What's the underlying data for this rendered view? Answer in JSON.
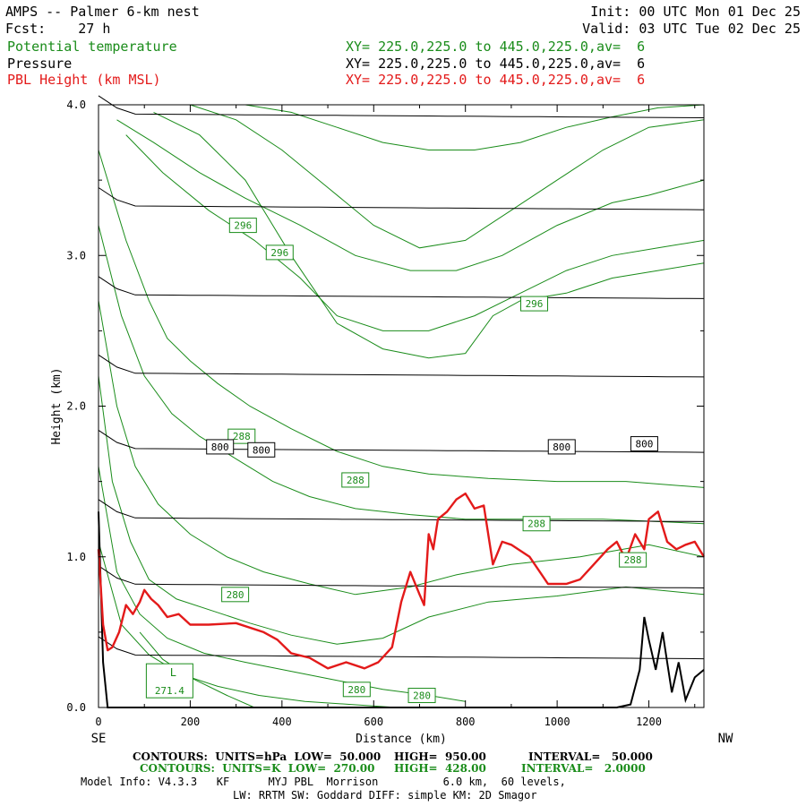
{
  "header": {
    "left_line1": "AMPS -- Palmer 6-km nest",
    "left_line2": "Fcst:    27 h",
    "right_line1": "Init: 00 UTC Mon 01 Dec 25",
    "right_line2": "Valid: 03 UTC Tue 02 Dec 25",
    "field1": "Potential temperature",
    "field2": "Pressure",
    "field3": "PBL Height (km MSL)",
    "xy1": "XY= 225.0,225.0 to 445.0,225.0,av=  6",
    "xy2": "XY= 225.0,225.0 to 445.0,225.0,av=  6",
    "xy3": "XY= 225.0,225.0 to 445.0,225.0,av=  6"
  },
  "colors": {
    "theta": "#1a8c1a",
    "pressure": "#000000",
    "pbl": "#e31a1a"
  },
  "chart_data": {
    "type": "line",
    "title": "AMPS -- Palmer 6-km nest",
    "xlabel": "Distance (km)",
    "ylabel": "Height (km)",
    "xlim": [
      0,
      1320
    ],
    "ylim": [
      0,
      4.0
    ],
    "x_ticks": [
      0,
      200,
      400,
      600,
      800,
      1000,
      1200
    ],
    "x_tick_labels": [
      "0",
      "200",
      "400",
      "600",
      "800",
      "1000",
      "1200"
    ],
    "y_ticks": [
      0,
      1,
      2,
      3,
      4
    ],
    "y_tick_labels": [
      "0.0",
      "1.0",
      "2.0",
      "3.0",
      "4.0"
    ],
    "endpoint_left": "SE",
    "endpoint_right": "NW",
    "pressure_levels_km": [
      0.35,
      0.82,
      1.26,
      1.72,
      2.22,
      2.74,
      3.33,
      3.94
    ],
    "pressure_labels": [
      {
        "text": "800",
        "x": 265,
        "y": 1.73
      },
      {
        "text": "800",
        "x": 355,
        "y": 1.71
      },
      {
        "text": "800",
        "x": 1010,
        "y": 1.73
      },
      {
        "text": "800",
        "x": 1190,
        "y": 1.75
      }
    ],
    "theta_lines": [
      {
        "x": [
          0,
          60,
          110,
          150,
          200,
          260,
          330,
          420,
          520,
          620,
          720,
          850,
          1000,
          1150,
          1320
        ],
        "y": [
          3.7,
          3.1,
          2.7,
          2.45,
          2.3,
          2.15,
          2.0,
          1.85,
          1.7,
          1.6,
          1.55,
          1.52,
          1.5,
          1.5,
          1.46
        ]
      },
      {
        "x": [
          0,
          50,
          100,
          160,
          220,
          300,
          380,
          460,
          560,
          680,
          800,
          950,
          1100,
          1320
        ],
        "y": [
          3.2,
          2.6,
          2.2,
          1.95,
          1.8,
          1.65,
          1.5,
          1.4,
          1.32,
          1.28,
          1.25,
          1.25,
          1.25,
          1.22
        ]
      },
      {
        "x": [
          0,
          40,
          80,
          130,
          200,
          280,
          360,
          460,
          560,
          680,
          780,
          900,
          1050,
          1200,
          1320
        ],
        "y": [
          2.7,
          2.0,
          1.6,
          1.35,
          1.15,
          1.0,
          0.9,
          0.82,
          0.75,
          0.8,
          0.88,
          0.95,
          1.0,
          1.08,
          1.0
        ]
      },
      {
        "x": [
          0,
          30,
          70,
          110,
          170,
          250,
          330,
          420,
          520,
          620,
          720,
          850,
          1000,
          1150,
          1320
        ],
        "y": [
          2.2,
          1.5,
          1.1,
          0.85,
          0.72,
          0.64,
          0.56,
          0.48,
          0.42,
          0.46,
          0.6,
          0.7,
          0.74,
          0.8,
          0.75
        ]
      },
      {
        "x": [
          0,
          40,
          90,
          150,
          230,
          320,
          420,
          520,
          620,
          720,
          800
        ],
        "y": [
          1.6,
          0.9,
          0.62,
          0.46,
          0.36,
          0.3,
          0.24,
          0.18,
          0.12,
          0.08,
          0.04
        ]
      },
      {
        "x": [
          0,
          50,
          110,
          180,
          260,
          350,
          450,
          550,
          650
        ],
        "y": [
          1.1,
          0.55,
          0.35,
          0.22,
          0.14,
          0.08,
          0.04,
          0.02,
          0.0
        ]
      },
      {
        "x": [
          90,
          140,
          200,
          280,
          340
        ],
        "y": [
          0.5,
          0.32,
          0.2,
          0.08,
          0.0
        ]
      },
      {
        "x": [
          40,
          120,
          220,
          320,
          440,
          560,
          680,
          780,
          880,
          1000,
          1120,
          1200,
          1260,
          1320
        ],
        "y": [
          3.9,
          3.75,
          3.55,
          3.38,
          3.2,
          3.0,
          2.9,
          2.9,
          3.0,
          3.2,
          3.35,
          3.4,
          3.45,
          3.5
        ]
      },
      {
        "x": [
          60,
          140,
          240,
          340,
          440,
          520,
          620,
          720,
          820,
          920,
          1020,
          1120,
          1220,
          1320
        ],
        "y": [
          3.8,
          3.55,
          3.3,
          3.1,
          2.85,
          2.6,
          2.5,
          2.5,
          2.6,
          2.75,
          2.9,
          3.0,
          3.05,
          3.1
        ]
      },
      {
        "x": [
          120,
          220,
          320,
          420,
          520,
          620,
          720,
          800,
          860,
          920,
          1020,
          1120,
          1220,
          1320
        ],
        "y": [
          3.95,
          3.8,
          3.5,
          3.0,
          2.55,
          2.38,
          2.32,
          2.35,
          2.6,
          2.7,
          2.75,
          2.85,
          2.9,
          2.95
        ]
      },
      {
        "x": [
          200,
          300,
          400,
          500,
          600,
          700,
          800,
          900,
          1000,
          1100,
          1200,
          1320
        ],
        "y": [
          4.0,
          3.9,
          3.7,
          3.45,
          3.2,
          3.05,
          3.1,
          3.3,
          3.5,
          3.7,
          3.85,
          3.9
        ]
      },
      {
        "x": [
          320,
          420,
          520,
          620,
          720,
          820,
          920,
          1020,
          1120,
          1220,
          1320
        ],
        "y": [
          4.0,
          3.95,
          3.85,
          3.75,
          3.7,
          3.7,
          3.75,
          3.85,
          3.92,
          3.98,
          4.0
        ]
      }
    ],
    "theta_labels": [
      {
        "text": "296",
        "x": 315,
        "y": 3.2
      },
      {
        "text": "296",
        "x": 395,
        "y": 3.02
      },
      {
        "text": "296",
        "x": 950,
        "y": 2.68
      },
      {
        "text": "288",
        "x": 312,
        "y": 1.8
      },
      {
        "text": "288",
        "x": 560,
        "y": 1.51
      },
      {
        "text": "288",
        "x": 955,
        "y": 1.22
      },
      {
        "text": "288",
        "x": 1165,
        "y": 0.98
      },
      {
        "text": "280",
        "x": 298,
        "y": 0.75
      },
      {
        "text": "280",
        "x": 563,
        "y": 0.12
      },
      {
        "text": "280",
        "x": 705,
        "y": 0.08
      }
    ],
    "low_marker": {
      "text": "L",
      "value": "271.4",
      "x": 155,
      "y": 0.1
    },
    "pbl_height": {
      "x": [
        0,
        10,
        20,
        30,
        45,
        60,
        75,
        90,
        100,
        115,
        130,
        150,
        175,
        200,
        240,
        300,
        360,
        390,
        420,
        460,
        500,
        540,
        580,
        610,
        640,
        660,
        680,
        700,
        710,
        720,
        730,
        740,
        760,
        780,
        800,
        820,
        840,
        860,
        880,
        900,
        940,
        980,
        1020,
        1050,
        1080,
        1110,
        1130,
        1150,
        1170,
        1190,
        1200,
        1220,
        1240,
        1260,
        1280,
        1300,
        1320
      ],
      "y": [
        1.05,
        0.55,
        0.38,
        0.4,
        0.5,
        0.68,
        0.62,
        0.7,
        0.78,
        0.72,
        0.68,
        0.6,
        0.62,
        0.55,
        0.55,
        0.56,
        0.5,
        0.45,
        0.36,
        0.33,
        0.26,
        0.3,
        0.26,
        0.3,
        0.4,
        0.7,
        0.9,
        0.75,
        0.68,
        1.15,
        1.05,
        1.25,
        1.3,
        1.38,
        1.42,
        1.32,
        1.34,
        0.95,
        1.1,
        1.08,
        1.0,
        0.82,
        0.82,
        0.85,
        0.95,
        1.05,
        1.1,
        0.98,
        1.15,
        1.05,
        1.25,
        1.3,
        1.1,
        1.05,
        1.08,
        1.1,
        1.0
      ]
    },
    "terrain": {
      "x": [
        0,
        10,
        20,
        60,
        120,
        200,
        400,
        600,
        800,
        1000,
        1130,
        1160,
        1180,
        1190,
        1200,
        1215,
        1230,
        1240,
        1250,
        1265,
        1280,
        1300,
        1320
      ],
      "y": [
        1.3,
        0.3,
        0.0,
        0.0,
        0.0,
        0.0,
        0.0,
        0.0,
        0.0,
        0.0,
        0.0,
        0.02,
        0.25,
        0.6,
        0.45,
        0.25,
        0.5,
        0.3,
        0.1,
        0.3,
        0.05,
        0.2,
        0.25
      ]
    }
  },
  "footer": {
    "line1_left": "CONTOURS:  UNITS=hPa  LOW=  50.000",
    "line1_high": "HIGH=  950.00",
    "line1_int": "INTERVAL=   50.000",
    "line2_left": "CONTOURS:  UNITS=K  LOW=  270.00",
    "line2_high": "HIGH=  428.00",
    "line2_int": "INTERVAL=   2.0000",
    "line3": "Model Info: V4.3.3   KF      MYJ PBL  Morrison          6.0 km,  60 levels,",
    "line4": "LW: RRTM SW: Goddard DIFF: simple KM: 2D Smagor"
  }
}
